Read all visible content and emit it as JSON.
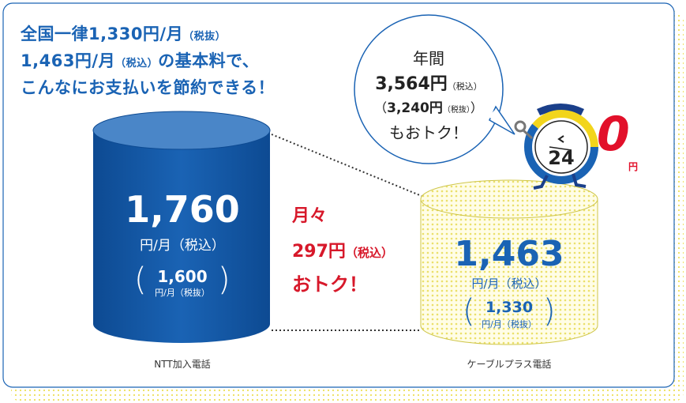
{
  "headline": {
    "line1_main": "全国一律1,330円/月",
    "line1_small": "（税抜）",
    "line2_pre": "1,463円/月",
    "line2_small": "（税込）",
    "line2_post": "の基本料で、",
    "line3": "こんなにお支払いを節約できる！"
  },
  "ntt": {
    "price": "1,760",
    "unit": "円/月（税込）",
    "sub_price": "1,600",
    "sub_unit": "円/月（税抜）",
    "label": "NTT加入電話"
  },
  "cable": {
    "price": "1,463",
    "unit": "円/月（税込）",
    "sub_price": "1,330",
    "sub_unit": "円/月（税抜）",
    "label": "ケーブルプラス電話"
  },
  "savings": {
    "line1": "月々",
    "amount": "297円",
    "amount_note": "（税込）",
    "line3": "おトク！"
  },
  "bubble": {
    "line1": "年間",
    "line2_amount": "3,564円",
    "line2_note": "（税込）",
    "line3_open": "（",
    "line3_amount": "3,240円",
    "line3_note": "（税抜）",
    "line3_close": "）",
    "line4": "もおトク！"
  },
  "mascot": {
    "clock_number": "24",
    "zero": "0",
    "zero_unit": "円"
  },
  "colors": {
    "blue": "#1a63b4",
    "dark_blue": "#0e4e98",
    "red": "#d7182a",
    "yellow_dot": "#f0e25a"
  }
}
